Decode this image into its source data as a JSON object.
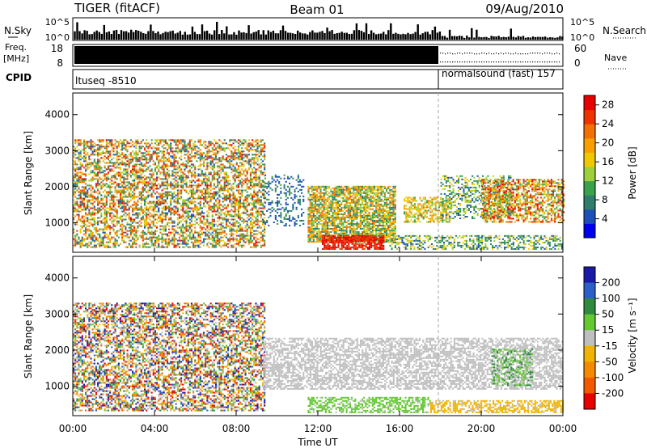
{
  "header": {
    "title": "TIGER (fitACF)",
    "beam": "Beam 01",
    "date": "09/Aug/2010"
  },
  "top_panels": {
    "nsky_label": "N.Sky",
    "nsky_ticks": [
      "10^5",
      "10^0"
    ],
    "nsearch_label": "N.Search",
    "freq_label_1": "Freq.",
    "freq_label_2": "[MHz]",
    "freq_ticks": [
      "18",
      "8"
    ],
    "nave_label": "Nave",
    "nave_ticks": [
      "60",
      "0"
    ],
    "cpid_label": "CPID",
    "cpid_segments": [
      {
        "text": "ltuseq -8510",
        "start_hour": 0,
        "end_hour": 18
      },
      {
        "text": "normalsound (fast) 157",
        "start_hour": 18,
        "end_hour": 24
      }
    ]
  },
  "axes": {
    "xlabel": "Time UT",
    "x_ticks": [
      "00:00",
      "04:00",
      "08:00",
      "12:00",
      "16:00",
      "20:00",
      "00:00"
    ],
    "ylabel": "Slant Range [km]",
    "y_ticks": [
      "1000",
      "2000",
      "3000",
      "4000"
    ]
  },
  "colorbars": {
    "power": {
      "label": "Power [dB]",
      "ticks": [
        "4",
        "8",
        "12",
        "16",
        "20",
        "24",
        "28"
      ],
      "colors": [
        "#0000ee",
        "#1c4fb8",
        "#2f7d6a",
        "#3aa24a",
        "#9fcf3a",
        "#f0c800",
        "#f7a000",
        "#f27000",
        "#ee3300",
        "#e60000"
      ]
    },
    "velocity": {
      "label": "Velocity [m s⁻¹]",
      "ticks": [
        "200",
        "100",
        "50",
        "15",
        "-15",
        "-50",
        "-100",
        "-200"
      ],
      "colors": [
        "#1a1aa8",
        "#2d5fc8",
        "#2f8a3e",
        "#63c832",
        "#bfbfbf",
        "#f0b400",
        "#f38a00",
        "#f25a00",
        "#e60000"
      ]
    }
  },
  "chart_data": {
    "type": "heatmap",
    "title": "TIGER (fitACF)",
    "xlabel": "Time UT",
    "ylabel": "Slant Range [km]",
    "xlim": [
      0,
      24
    ],
    "ylim": [
      180,
      4600
    ],
    "panels": [
      {
        "name": "Power [dB]",
        "clim": [
          0,
          30
        ],
        "regions": [
          {
            "t0": 0.0,
            "t1": 9.4,
            "r0": 300,
            "r1": 3300,
            "v0": 4,
            "v1": 28,
            "density": 0.55
          },
          {
            "t0": 9.3,
            "t1": 11.3,
            "r0": 900,
            "r1": 2300,
            "v0": 3,
            "v1": 10,
            "density": 0.3
          },
          {
            "t0": 11.5,
            "t1": 15.8,
            "r0": 450,
            "r1": 2000,
            "v0": 6,
            "v1": 24,
            "density": 0.8
          },
          {
            "t0": 12.2,
            "t1": 15.2,
            "r0": 250,
            "r1": 650,
            "v0": 24,
            "v1": 30,
            "density": 0.8
          },
          {
            "t0": 15.5,
            "t1": 24.0,
            "r0": 250,
            "r1": 650,
            "v0": 4,
            "v1": 18,
            "density": 0.45
          },
          {
            "t0": 16.2,
            "t1": 18.5,
            "r0": 1000,
            "r1": 1700,
            "v0": 10,
            "v1": 22,
            "density": 0.6
          },
          {
            "t0": 18.0,
            "t1": 21.5,
            "r0": 1100,
            "r1": 2300,
            "v0": 4,
            "v1": 18,
            "density": 0.4
          },
          {
            "t0": 20.0,
            "t1": 24.0,
            "r0": 1000,
            "r1": 2200,
            "v0": 8,
            "v1": 30,
            "density": 0.6
          }
        ]
      },
      {
        "name": "Velocity [m s-1]",
        "clim": [
          -200,
          200
        ],
        "regions": [
          {
            "t0": 0.0,
            "t1": 9.4,
            "r0": 300,
            "r1": 3300,
            "v0": -200,
            "v1": 200,
            "density": 0.55
          },
          {
            "t0": 9.3,
            "t1": 24.0,
            "r0": 900,
            "r1": 2300,
            "v0": -15,
            "v1": 15,
            "density": 0.6
          },
          {
            "t0": 11.5,
            "t1": 17.5,
            "r0": 250,
            "r1": 700,
            "v0": 15,
            "v1": 60,
            "density": 0.55
          },
          {
            "t0": 17.5,
            "t1": 24.0,
            "r0": 250,
            "r1": 600,
            "v0": -60,
            "v1": -15,
            "density": 0.6
          },
          {
            "t0": 20.5,
            "t1": 22.5,
            "r0": 1000,
            "r1": 2000,
            "v0": 15,
            "v1": 100,
            "density": 0.4
          }
        ]
      }
    ]
  }
}
